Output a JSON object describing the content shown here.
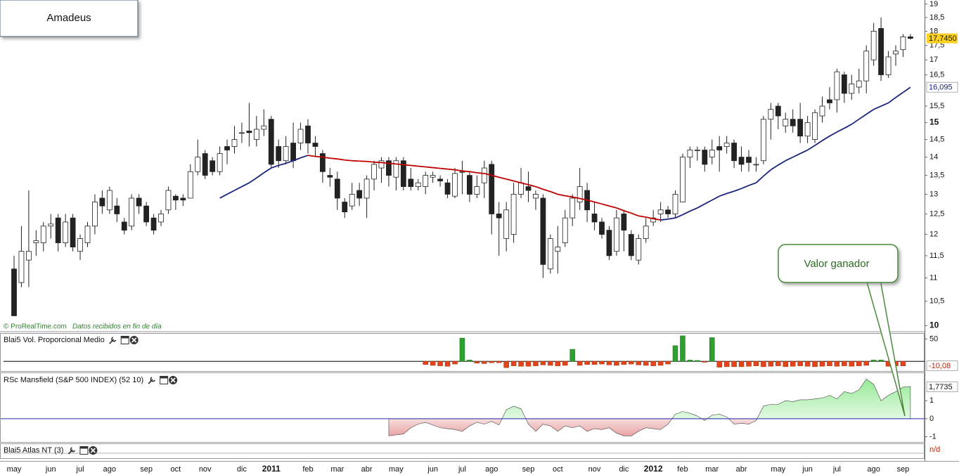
{
  "chart_data": [
    {
      "type": "candlestick",
      "title": "Amadeus",
      "source": "© ProRealTime.com",
      "note": "Datos recibidos en fin de día",
      "annotation": "Valor ganador",
      "log_scale": true,
      "ylim": [
        9.91,
        19.13
      ],
      "yticks": [
        10,
        {
          "value": 10.5,
          "label": "10,5"
        },
        11,
        {
          "value": 11.5,
          "label": "11,5"
        },
        12,
        {
          "value": 12.5,
          "label": "12,5"
        },
        13,
        {
          "value": 13.5,
          "label": "13,5"
        },
        14,
        {
          "value": 14.5,
          "label": "14,5"
        },
        15,
        {
          "value": 15.5,
          "label": "15,5"
        },
        {
          "value": 16.5,
          "label": "16,5"
        },
        17,
        {
          "value": 17.5,
          "label": "17,5"
        },
        18,
        {
          "value": 18.5,
          "label": "18,5"
        },
        19
      ],
      "up_color": "#ffffff",
      "down_color": "#222222",
      "last_label": "17,7450",
      "categories": [
        "may",
        null,
        null,
        null,
        null,
        "jun",
        null,
        null,
        null,
        "jul",
        null,
        null,
        null,
        "ago",
        null,
        null,
        null,
        null,
        "sep",
        null,
        null,
        null,
        "oct",
        null,
        null,
        null,
        "nov",
        null,
        null,
        null,
        null,
        "dic",
        null,
        null,
        null,
        "2011",
        null,
        null,
        null,
        null,
        "feb",
        null,
        null,
        null,
        "mar",
        null,
        null,
        null,
        "abr",
        null,
        null,
        null,
        "may",
        null,
        null,
        null,
        null,
        "jun",
        null,
        null,
        null,
        "jul",
        null,
        null,
        null,
        "ago",
        null,
        null,
        null,
        null,
        "sep",
        null,
        null,
        null,
        "oct",
        null,
        null,
        null,
        null,
        "nov",
        null,
        null,
        null,
        "dic",
        null,
        null,
        null,
        "2012",
        null,
        null,
        null,
        "feb",
        null,
        null,
        null,
        "mar",
        null,
        null,
        null,
        "abr",
        null,
        null,
        null,
        null,
        "may",
        null,
        null,
        null,
        "jun",
        null,
        null,
        null,
        "jul",
        null,
        null,
        null,
        null,
        "ago",
        null,
        null,
        null,
        "sep",
        null
      ],
      "open": [
        11.2,
        10.9,
        11.4,
        11.8,
        11.8,
        12.2,
        12.4,
        11.8,
        12.4,
        11.6,
        11.8,
        12.2,
        12.9,
        12.6,
        12.7,
        12.3,
        12.2,
        12.9,
        12.7,
        12.4,
        12.3,
        12.6,
        12.95,
        12.9,
        12.9,
        13.6,
        14.1,
        13.9,
        13.6,
        14.3,
        14.3,
        14.7,
        14.75,
        14.5,
        14.8,
        15.1,
        14.3,
        13.9,
        14.4,
        14.4,
        14.9,
        14.4,
        14.1,
        13.5,
        13.4,
        12.8,
        12.7,
        13.1,
        12.9,
        13.4,
        13.7,
        13.9,
        13.45,
        13.9,
        13.4,
        13.2,
        13.2,
        13.45,
        13.4,
        13.3,
        12.95,
        13.6,
        13.5,
        13.0,
        13.3,
        13.8,
        12.5,
        11.9,
        12.0,
        13.0,
        13.2,
        12.9,
        12.9,
        11.2,
        11.6,
        11.8,
        12.4,
        12.8,
        13.1,
        12.5,
        12.3,
        12.1,
        11.6,
        12.5,
        12.0,
        11.4,
        11.9,
        12.3,
        12.5,
        12.6,
        12.5,
        12.8,
        14.0,
        14.2,
        14.2,
        14.0,
        14.3,
        14.3,
        14.4,
        14.0,
        14.0,
        13.8,
        13.9,
        15.1,
        15.5,
        14.9,
        15.1,
        15.1,
        14.6,
        14.5,
        15.2,
        15.7,
        15.7,
        16.5,
        15.9,
        16.1,
        16.3,
        17.0,
        18.1,
        16.5,
        17.2,
        17.35,
        17.8
      ],
      "high": [
        11.5,
        12.2,
        13.1,
        12.1,
        12.3,
        12.5,
        12.5,
        12.5,
        12.5,
        12.0,
        12.3,
        13.0,
        13.1,
        13.2,
        12.9,
        12.4,
        13.0,
        13.0,
        12.8,
        12.5,
        12.6,
        13.2,
        13.0,
        13.0,
        13.8,
        14.5,
        14.2,
        14.0,
        14.3,
        14.5,
        14.9,
        15.0,
        15.6,
        15.2,
        15.4,
        15.2,
        14.5,
        14.6,
        15.0,
        15.0,
        15.1,
        14.6,
        14.2,
        13.7,
        13.6,
        12.9,
        13.3,
        13.3,
        13.5,
        13.9,
        14.0,
        14.0,
        14.0,
        14.0,
        13.7,
        13.4,
        13.6,
        13.6,
        13.5,
        13.4,
        13.7,
        13.9,
        13.6,
        13.5,
        13.9,
        13.9,
        12.8,
        12.8,
        13.3,
        13.7,
        13.6,
        13.1,
        13.0,
        12.0,
        12.2,
        12.6,
        13.0,
        13.7,
        13.3,
        12.8,
        12.4,
        12.2,
        12.6,
        12.6,
        12.1,
        12.0,
        12.4,
        12.6,
        12.8,
        12.7,
        13.1,
        14.1,
        14.3,
        14.3,
        14.3,
        14.5,
        14.6,
        14.6,
        14.5,
        14.3,
        14.2,
        14.0,
        15.2,
        15.6,
        15.6,
        15.3,
        15.4,
        15.6,
        15.2,
        15.4,
        15.8,
        16.1,
        16.7,
        16.6,
        16.5,
        16.7,
        17.5,
        18.3,
        18.5,
        17.3,
        17.5,
        17.9,
        17.9
      ],
      "low": [
        10.2,
        10.8,
        10.8,
        11.5,
        11.6,
        11.9,
        11.6,
        11.7,
        11.6,
        11.4,
        11.7,
        12.0,
        12.5,
        12.5,
        12.3,
        12.0,
        12.1,
        12.5,
        12.2,
        12.0,
        12.2,
        12.5,
        12.6,
        12.7,
        12.9,
        13.5,
        13.4,
        13.5,
        13.5,
        13.8,
        14.1,
        14.4,
        14.3,
        14.3,
        14.6,
        13.7,
        13.7,
        13.8,
        13.7,
        14.2,
        14.1,
        14.0,
        13.3,
        13.2,
        12.6,
        12.4,
        12.6,
        12.7,
        12.4,
        13.1,
        13.3,
        13.2,
        13.1,
        13.1,
        13.1,
        13.1,
        13.0,
        13.3,
        13.2,
        12.9,
        12.9,
        13.0,
        12.8,
        12.9,
        12.9,
        12.0,
        11.5,
        11.6,
        11.8,
        12.9,
        12.8,
        12.6,
        11.0,
        11.1,
        11.1,
        11.7,
        12.2,
        12.6,
        12.3,
        12.1,
        11.9,
        11.4,
        11.5,
        11.6,
        11.4,
        11.3,
        11.8,
        12.2,
        12.3,
        12.4,
        12.4,
        12.8,
        13.7,
        13.9,
        13.6,
        13.8,
        13.6,
        14.1,
        13.7,
        13.6,
        13.6,
        13.6,
        13.8,
        14.5,
        14.8,
        14.7,
        14.7,
        14.4,
        14.4,
        14.4,
        15.0,
        15.4,
        15.3,
        15.6,
        15.7,
        15.9,
        15.9,
        16.8,
        16.3,
        16.4,
        16.8,
        17.1,
        17.7
      ],
      "close": [
        10.2,
        11.6,
        11.6,
        11.85,
        12.2,
        12.25,
        11.8,
        12.3,
        11.7,
        11.9,
        12.2,
        12.8,
        12.7,
        13.1,
        12.5,
        12.1,
        12.9,
        12.7,
        12.3,
        12.1,
        12.5,
        13.1,
        12.85,
        12.85,
        13.6,
        14.0,
        13.5,
        13.6,
        14.1,
        14.2,
        14.5,
        14.7,
        14.7,
        14.8,
        14.9,
        13.8,
        13.9,
        14.3,
        13.9,
        14.8,
        14.4,
        14.3,
        13.6,
        13.45,
        12.9,
        12.55,
        13.0,
        12.9,
        13.4,
        13.8,
        13.9,
        13.5,
        13.9,
        13.2,
        13.2,
        13.3,
        13.5,
        13.5,
        13.35,
        13.0,
        13.55,
        13.6,
        13.0,
        13.2,
        13.7,
        12.5,
        12.4,
        12.6,
        13.0,
        13.3,
        13.1,
        13.0,
        11.3,
        11.9,
        11.7,
        12.4,
        12.9,
        13.2,
        12.6,
        12.3,
        12.0,
        11.5,
        12.4,
        12.1,
        11.5,
        11.9,
        12.2,
        12.4,
        12.6,
        12.5,
        13.0,
        14.0,
        14.2,
        14.2,
        13.8,
        14.2,
        14.2,
        14.4,
        13.9,
        13.8,
        13.85,
        13.8,
        15.1,
        15.4,
        15.2,
        15.1,
        14.9,
        14.6,
        15.0,
        15.3,
        15.5,
        15.6,
        16.6,
        15.9,
        16.2,
        16.3,
        17.3,
        18.0,
        16.5,
        17.1,
        17.3,
        17.8,
        17.745
      ],
      "moving_average": {
        "rising_color": "#1a237e",
        "falling_color": "#c00000",
        "last_label": "16,095",
        "values": [
          null,
          null,
          null,
          null,
          null,
          null,
          null,
          null,
          null,
          null,
          null,
          null,
          null,
          null,
          null,
          null,
          null,
          null,
          null,
          null,
          null,
          null,
          null,
          null,
          null,
          null,
          null,
          null,
          12.9,
          13.0,
          13.1,
          13.2,
          13.3,
          13.43,
          13.57,
          13.7,
          13.77,
          13.83,
          13.9,
          13.98,
          14.05,
          14.02,
          14.0,
          13.97,
          13.95,
          13.92,
          13.9,
          13.89,
          13.88,
          13.86,
          13.85,
          13.83,
          13.81,
          13.79,
          13.77,
          13.75,
          13.73,
          13.71,
          13.69,
          13.67,
          13.65,
          13.62,
          13.6,
          13.57,
          13.55,
          13.5,
          13.45,
          13.4,
          13.35,
          13.3,
          13.25,
          13.2,
          13.13,
          13.07,
          13.0,
          12.96,
          12.93,
          12.89,
          12.85,
          12.8,
          12.75,
          12.7,
          12.65,
          12.58,
          12.52,
          12.45,
          12.42,
          12.38,
          12.35,
          12.37,
          12.4,
          12.48,
          12.57,
          12.65,
          12.75,
          12.85,
          12.95,
          13.02,
          13.08,
          13.15,
          13.23,
          13.3,
          13.48,
          13.65,
          13.78,
          13.9,
          14.0,
          14.1,
          14.2,
          14.33,
          14.47,
          14.6,
          14.72,
          14.83,
          14.95,
          15.1,
          15.25,
          15.4,
          15.5,
          15.6,
          15.77,
          15.93,
          16.095
        ]
      }
    },
    {
      "type": "bar",
      "title": "Blai5 Vol. Proporcional Medio",
      "ylim": [
        -20,
        60
      ],
      "yticks": [
        50
      ],
      "up_color": "#2ea02e",
      "down_color": "#e2451c",
      "last_label": "-10,08",
      "values": [
        null,
        null,
        null,
        null,
        null,
        null,
        null,
        null,
        null,
        null,
        null,
        null,
        null,
        null,
        null,
        null,
        null,
        null,
        null,
        null,
        null,
        null,
        null,
        null,
        null,
        null,
        null,
        null,
        null,
        null,
        null,
        null,
        null,
        null,
        null,
        null,
        null,
        null,
        null,
        null,
        null,
        null,
        null,
        null,
        null,
        null,
        null,
        null,
        null,
        null,
        null,
        null,
        null,
        null,
        null,
        null,
        -7,
        -9,
        -10,
        -11,
        -6,
        52,
        3,
        -4,
        -5,
        -3,
        -3,
        -14,
        -10,
        -11,
        -11,
        -10,
        -8,
        -9,
        -10,
        -9,
        27,
        -9,
        -7,
        -7,
        -6,
        -8,
        -9,
        -7,
        -6,
        -8,
        -9,
        -10,
        -9,
        -6,
        35,
        57,
        3,
        2,
        -2,
        53,
        -13,
        -12,
        -12,
        -12,
        -11,
        -10,
        -12,
        -11,
        -10,
        -12,
        -11,
        -10,
        -11,
        -12,
        -11,
        -10,
        -11,
        -10,
        -11,
        -10,
        -9,
        3,
        3,
        -11,
        -10,
        -10.08
      ]
    },
    {
      "type": "area",
      "title": "RSc Mansfield (S&P 500 INDEX) (52 10)",
      "ylim": [
        -1.25,
        2.45
      ],
      "yticks": [
        -1,
        0,
        1
      ],
      "above_color": "#8ee88e",
      "below_color": "#e58f8f",
      "zero_color": "#2a2ab8",
      "last_label": "1,7735",
      "values": [
        null,
        null,
        null,
        null,
        null,
        null,
        null,
        null,
        null,
        null,
        null,
        null,
        null,
        null,
        null,
        null,
        null,
        null,
        null,
        null,
        null,
        null,
        null,
        null,
        null,
        null,
        null,
        null,
        null,
        null,
        null,
        null,
        null,
        null,
        null,
        null,
        null,
        null,
        null,
        null,
        null,
        null,
        null,
        null,
        null,
        null,
        null,
        null,
        null,
        null,
        null,
        -0.95,
        -0.9,
        -0.85,
        -0.5,
        -0.3,
        -0.2,
        -0.35,
        -0.5,
        -0.55,
        -0.6,
        -0.7,
        -0.4,
        -0.2,
        -0.3,
        -0.15,
        -0.35,
        0.5,
        0.7,
        0.55,
        -0.3,
        -0.7,
        -0.3,
        -0.4,
        -0.7,
        -0.4,
        -0.5,
        -0.4,
        -0.7,
        -0.55,
        -0.6,
        -0.5,
        -0.8,
        -0.95,
        -0.95,
        -0.7,
        -0.5,
        -0.55,
        -0.6,
        -0.3,
        0.25,
        0.4,
        0.3,
        0.15,
        -0.1,
        0.2,
        0.25,
        0.1,
        -0.3,
        -0.25,
        -0.3,
        -0.1,
        0.7,
        0.8,
        0.8,
        1.0,
        0.95,
        1.05,
        1.05,
        1.1,
        1.15,
        1.3,
        1.1,
        1.5,
        1.4,
        1.6,
        2.2,
        1.9,
        1.0,
        1.3,
        1.5,
        1.75,
        1.7735
      ]
    },
    {
      "type": "line",
      "title": "Blai5 Atlas NT (3)",
      "status": "n/d"
    }
  ]
}
